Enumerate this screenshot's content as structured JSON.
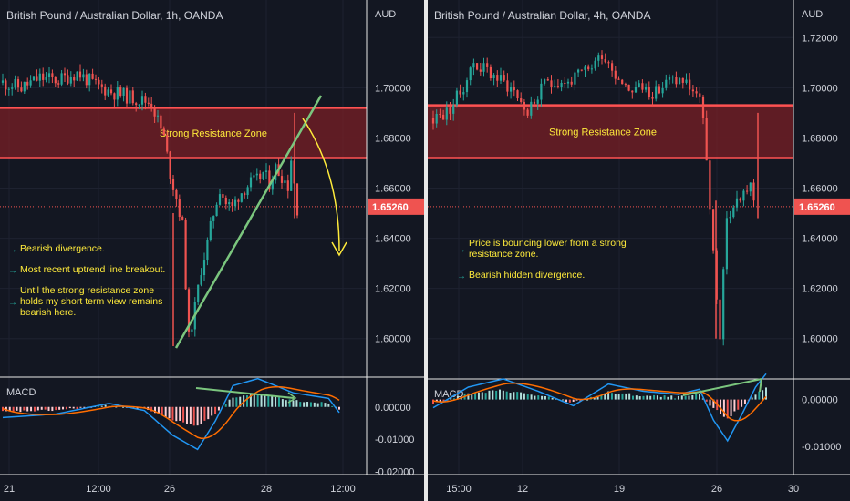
{
  "charts": [
    {
      "id": "left",
      "title": "British Pound / Australian Dollar, 1h, OANDA",
      "currency": "AUD",
      "price_ticks": [
        "1.70000",
        "1.68000",
        "1.66000",
        "1.64000",
        "1.62000",
        "1.60000"
      ],
      "price_ticks_values": [
        1.7,
        1.68,
        1.66,
        1.64,
        1.62,
        1.6
      ],
      "last_price": "1.65260",
      "last_price_value": 1.6526,
      "zone_label": "Strong Resistance Zone",
      "zone_range": [
        1.672,
        1.692
      ],
      "annotations": [
        "Bearish divergence.",
        "Most recent uptrend line breakout.",
        "Until the strong resistance zone holds my short term view remains bearish here."
      ],
      "macd_label": "MACD",
      "macd_ticks": [
        "0.00000",
        "-0.01000",
        "-0.02000"
      ],
      "macd_ticks_values": [
        0,
        -0.01,
        -0.02
      ],
      "time_ticks": [
        "21",
        "12:00",
        "26",
        "28",
        "12:00"
      ],
      "colors": {
        "bull": "#26a69a",
        "bear": "#ef5350",
        "zone": "#ff5252",
        "trend": "#7bc67e",
        "arrow": "#ffeb3b",
        "annotation": "#ffeb3b",
        "macd": "#2196f3",
        "signal": "#ff6d00"
      }
    },
    {
      "id": "right",
      "title": "British Pound / Australian Dollar, 4h, OANDA",
      "currency": "AUD",
      "price_ticks": [
        "1.72000",
        "1.70000",
        "1.68000",
        "1.66000",
        "1.64000",
        "1.62000",
        "1.60000"
      ],
      "price_ticks_values": [
        1.72,
        1.7,
        1.68,
        1.66,
        1.64,
        1.62,
        1.6
      ],
      "last_price": "1.65260",
      "last_price_value": 1.6526,
      "zone_label": "Strong Resistance Zone",
      "zone_range": [
        1.672,
        1.693
      ],
      "annotations": [
        "Price is bouncing lower from a strong resistance zone.",
        "Bearish hidden divergence."
      ],
      "macd_label": "MACD",
      "macd_ticks": [
        "0.00000",
        "-0.01000"
      ],
      "macd_ticks_values": [
        0,
        -0.01
      ],
      "time_ticks": [
        "15:00",
        "12",
        "19",
        "26",
        "30"
      ],
      "colors": {
        "bull": "#26a69a",
        "bear": "#ef5350",
        "zone": "#ff5252",
        "trend": "#7bc67e",
        "annotation": "#ffeb3b",
        "macd": "#2196f3",
        "signal": "#ff6d00"
      }
    }
  ],
  "chart_data": [
    {
      "type": "candlestick",
      "title": "British Pound / Australian Dollar, 1h, OANDA",
      "y_unit": "AUD",
      "ylim": [
        1.585,
        1.735
      ],
      "x_ticks": [
        "21",
        "12:00",
        "26",
        "28",
        "12:00"
      ],
      "close_path": [
        [
          0,
          1.702
        ],
        [
          6,
          1.7
        ],
        [
          12,
          1.704
        ],
        [
          18,
          1.703
        ],
        [
          24,
          1.706
        ],
        [
          30,
          1.701
        ],
        [
          36,
          1.698
        ],
        [
          42,
          1.696
        ],
        [
          48,
          1.694
        ],
        [
          52,
          1.68
        ],
        [
          54,
          1.666
        ],
        [
          56,
          1.656
        ],
        [
          58,
          1.645
        ],
        [
          60,
          1.6
        ],
        [
          62,
          1.612
        ],
        [
          64,
          1.628
        ],
        [
          66,
          1.638
        ],
        [
          68,
          1.65
        ],
        [
          70,
          1.66
        ],
        [
          72,
          1.654
        ],
        [
          74,
          1.652
        ],
        [
          76,
          1.657
        ],
        [
          78,
          1.66
        ],
        [
          80,
          1.662
        ],
        [
          82,
          1.663
        ],
        [
          84,
          1.666
        ],
        [
          86,
          1.662
        ],
        [
          88,
          1.668
        ],
        [
          90,
          1.665
        ],
        [
          92,
          1.661
        ],
        [
          93,
          1.672
        ],
        [
          95,
          1.652
        ]
      ],
      "resistance_zone": [
        1.672,
        1.692
      ],
      "last_price": 1.6526,
      "macd": {
        "ylim": [
          -0.021,
          0.007
        ],
        "hist_path": [
          [
            0,
            -0.0015
          ],
          [
            15,
            -0.001
          ],
          [
            30,
            0.0005
          ],
          [
            40,
            -0.0005
          ],
          [
            48,
            -0.004
          ],
          [
            55,
            -0.006
          ],
          [
            60,
            -0.002
          ],
          [
            65,
            0.003
          ],
          [
            72,
            0.004
          ],
          [
            82,
            0.002
          ],
          [
            92,
            0.0012
          ],
          [
            95,
            -0.0008
          ]
        ]
      }
    },
    {
      "type": "candlestick",
      "title": "British Pound / Australian Dollar, 4h, OANDA",
      "y_unit": "AUD",
      "ylim": [
        1.585,
        1.735
      ],
      "x_ticks": [
        "15:00",
        "12",
        "19",
        "26",
        "30"
      ],
      "close_path": [
        [
          0,
          1.688
        ],
        [
          4,
          1.69
        ],
        [
          8,
          1.698
        ],
        [
          12,
          1.71
        ],
        [
          18,
          1.705
        ],
        [
          24,
          1.699
        ],
        [
          28,
          1.69
        ],
        [
          34,
          1.703
        ],
        [
          40,
          1.702
        ],
        [
          46,
          1.707
        ],
        [
          50,
          1.714
        ],
        [
          54,
          1.706
        ],
        [
          58,
          1.7
        ],
        [
          62,
          1.7
        ],
        [
          66,
          1.698
        ],
        [
          70,
          1.703
        ],
        [
          74,
          1.703
        ],
        [
          78,
          1.698
        ],
        [
          80,
          1.69
        ],
        [
          82,
          1.65
        ],
        [
          84,
          1.615
        ],
        [
          85,
          1.602
        ],
        [
          87,
          1.648
        ],
        [
          90,
          1.655
        ],
        [
          92,
          1.658
        ],
        [
          94,
          1.662
        ],
        [
          95,
          1.653
        ]
      ],
      "resistance_zone": [
        1.672,
        1.693
      ],
      "last_price": 1.6526,
      "macd": {
        "ylim": [
          -0.016,
          0.004
        ],
        "hist_path": [
          [
            0,
            -0.0008
          ],
          [
            10,
            0.0012
          ],
          [
            20,
            0.002
          ],
          [
            30,
            0.0008
          ],
          [
            40,
            -0.0006
          ],
          [
            50,
            0.0015
          ],
          [
            60,
            0.0008
          ],
          [
            70,
            0.0005
          ],
          [
            76,
            0.001
          ],
          [
            80,
            -0.002
          ],
          [
            84,
            -0.004
          ],
          [
            88,
            -0.0015
          ],
          [
            92,
            0.0012
          ],
          [
            95,
            0.0025
          ]
        ]
      }
    }
  ]
}
